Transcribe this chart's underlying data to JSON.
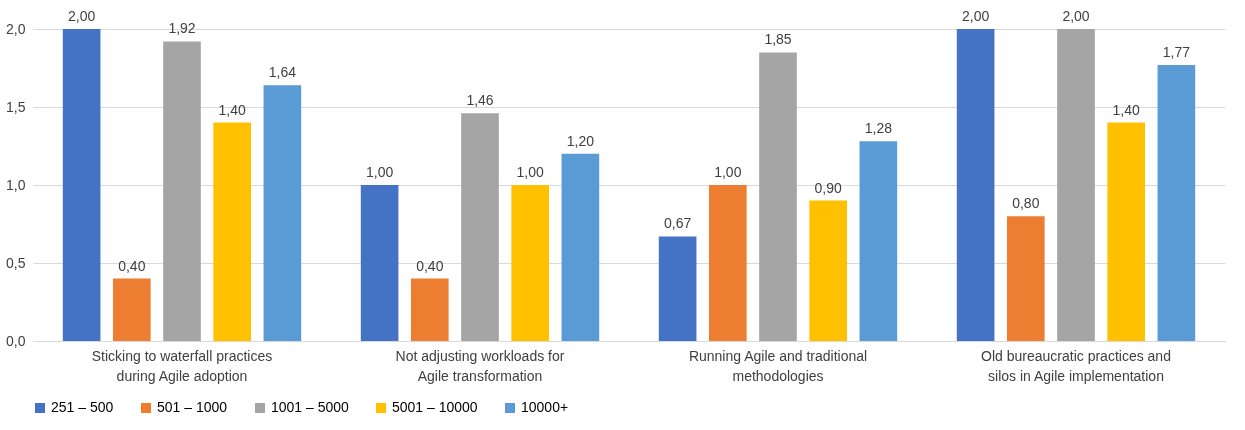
{
  "chart_data": {
    "type": "bar",
    "categories": [
      "Sticking to waterfall practices during Agile adoption",
      "Not adjusting workloads for Agile transformation",
      "Running Agile and traditional methodologies",
      "Old bureaucratic practices and silos in Agile implementation"
    ],
    "series": [
      {
        "name": "251 – 500",
        "color": "#4472c4",
        "values": [
          2.0,
          1.0,
          0.67,
          2.0
        ],
        "value_labels": [
          "2,00",
          "1,00",
          "0,67",
          "2,00"
        ]
      },
      {
        "name": "501 – 1000",
        "color": "#ed7d31",
        "values": [
          0.4,
          0.4,
          1.0,
          0.8
        ],
        "value_labels": [
          "0,40",
          "0,40",
          "1,00",
          "0,80"
        ]
      },
      {
        "name": "1001 – 5000",
        "color": "#a5a5a5",
        "values": [
          1.92,
          1.46,
          1.85,
          2.0
        ],
        "value_labels": [
          "1,92",
          "1,46",
          "1,85",
          "2,00"
        ]
      },
      {
        "name": "5001 – 10000",
        "color": "#ffc000",
        "values": [
          1.4,
          1.0,
          0.9,
          1.4
        ],
        "value_labels": [
          "1,40",
          "1,00",
          "0,90",
          "1,40"
        ]
      },
      {
        "name": "10000+",
        "color": "#5b9bd5",
        "values": [
          1.64,
          1.2,
          1.28,
          1.77
        ],
        "value_labels": [
          "1,64",
          "1,20",
          "1,28",
          "1,77"
        ]
      }
    ],
    "ylim": [
      0,
      2.0
    ],
    "yticks": [
      {
        "value": 0,
        "label": "0,0"
      },
      {
        "value": 0.5,
        "label": "0,5"
      },
      {
        "value": 1.0,
        "label": "1,0"
      },
      {
        "value": 1.5,
        "label": "1,5"
      },
      {
        "value": 2.0,
        "label": "2,0"
      }
    ],
    "grid": "y",
    "legend": "bottom"
  }
}
